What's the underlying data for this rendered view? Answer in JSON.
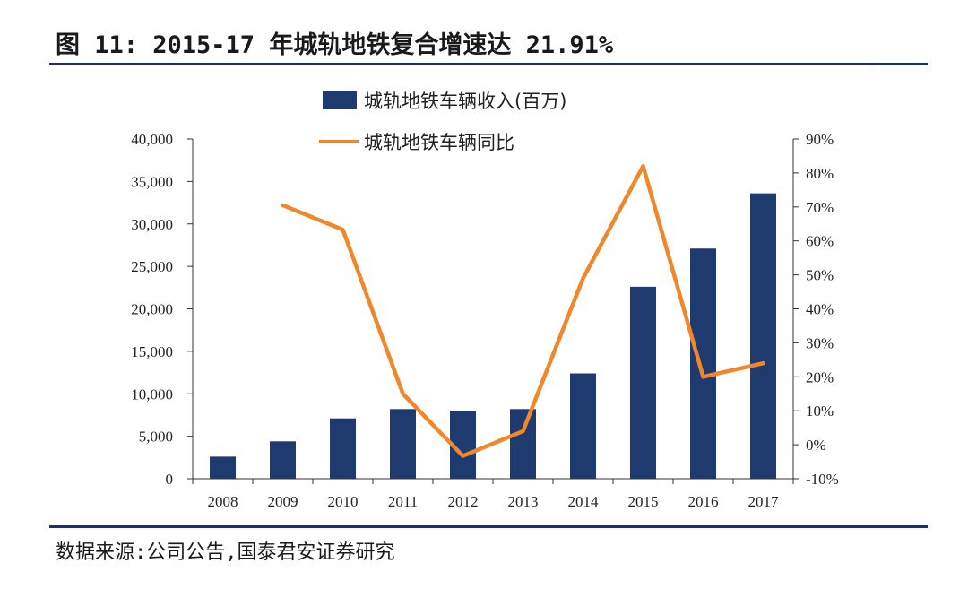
{
  "title": "图 11: 2015-17 年城轨地铁复合增速达 21.91%",
  "source": "数据来源:公司公告,国泰君安证券研究",
  "colors": {
    "bar": "#1f3a6e",
    "line": "#f0872a",
    "rule": "#1f2f5e"
  },
  "chart_data": {
    "type": "bar+line",
    "categories": [
      "2008",
      "2009",
      "2010",
      "2011",
      "2012",
      "2013",
      "2014",
      "2015",
      "2016",
      "2017"
    ],
    "series": [
      {
        "name": "城轨地铁车辆收入(百万)",
        "type": "bar",
        "axis": "left",
        "values": [
          2600,
          4400,
          7100,
          8200,
          8000,
          8200,
          12400,
          22600,
          27100,
          33600
        ]
      },
      {
        "name": "城轨地铁车辆同比",
        "type": "line",
        "axis": "right",
        "unit": "%",
        "values": [
          null,
          70.5,
          63.3,
          15,
          -3.3,
          4,
          49,
          82,
          20,
          24
        ]
      }
    ],
    "y_left": {
      "min": 0,
      "max": 40000,
      "ticks": [
        "0",
        "5,000",
        "10,000",
        "15,000",
        "20,000",
        "25,000",
        "30,000",
        "35,000",
        "40,000"
      ]
    },
    "y_right": {
      "min": -10,
      "max": 90,
      "ticks": [
        "-10%",
        "0%",
        "10%",
        "20%",
        "30%",
        "40%",
        "50%",
        "60%",
        "70%",
        "80%",
        "90%"
      ]
    },
    "legend_position": "top-center"
  }
}
